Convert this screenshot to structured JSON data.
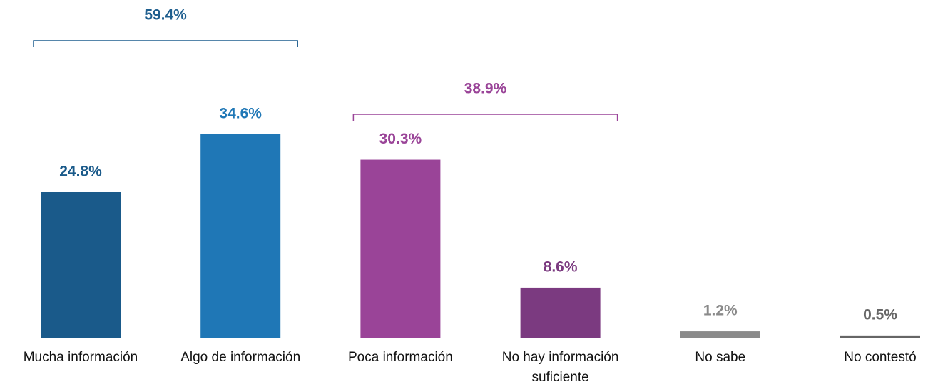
{
  "chart_data": {
    "type": "bar",
    "categories": [
      "Mucha información",
      "Algo de información",
      "Poca información",
      "No hay información suficiente",
      "No sabe",
      "No contestó"
    ],
    "values": [
      24.8,
      34.6,
      30.3,
      8.6,
      1.2,
      0.5
    ],
    "value_labels": [
      "24.8%",
      "34.6%",
      "30.3%",
      "8.6%",
      "1.2%",
      "0.5%"
    ],
    "colors": [
      "#1a5a8a",
      "#1f77b6",
      "#9a4498",
      "#7b3a80",
      "#8a8a8a",
      "#666666"
    ],
    "groups": [
      {
        "label": "59.4%",
        "value": 59.4,
        "members": [
          0,
          1
        ],
        "color": "#1f5f8f"
      },
      {
        "label": "38.9%",
        "value": 38.9,
        "members": [
          2,
          3
        ],
        "color": "#9a4498"
      }
    ]
  }
}
